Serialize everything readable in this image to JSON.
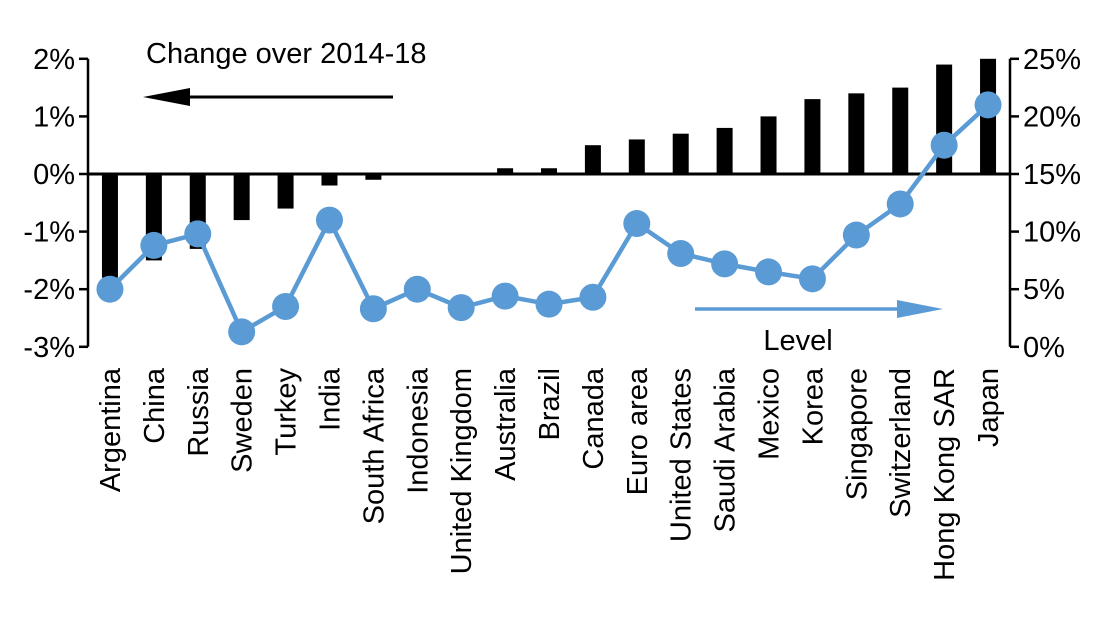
{
  "chart_data": {
    "type": "bar",
    "subtype": "combo-bar-line-dual-axis",
    "categories": [
      "Argentina",
      "China",
      "Russia",
      "Sweden",
      "Turkey",
      "India",
      "South Africa",
      "Indonesia",
      "United Kingdom",
      "Australia",
      "Brazil",
      "Canada",
      "Euro area",
      "United States",
      "Saudi Arabia",
      "Mexico",
      "Korea",
      "Singapore",
      "Switzerland",
      "Hong Kong SAR",
      "Japan"
    ],
    "series": [
      {
        "name": "Change over 2014-18",
        "type": "bar",
        "axis": "left",
        "color": "#000000",
        "values": [
          -1.8,
          -1.5,
          -1.3,
          -0.8,
          -0.6,
          -0.2,
          -0.1,
          0.0,
          0.0,
          0.1,
          0.1,
          0.5,
          0.6,
          0.7,
          0.8,
          1.0,
          1.3,
          1.4,
          1.5,
          1.9,
          2.0
        ]
      },
      {
        "name": "Level",
        "type": "line",
        "axis": "right",
        "color": "#5B9BD5",
        "values": [
          5.0,
          8.8,
          9.8,
          1.3,
          3.5,
          11.0,
          3.3,
          5.0,
          3.4,
          4.4,
          3.7,
          4.3,
          10.7,
          8.1,
          7.2,
          6.5,
          5.9,
          9.7,
          12.4,
          17.5,
          21.0
        ]
      }
    ],
    "left_axis": {
      "tick_labels": [
        "2%",
        "1%",
        "0%",
        "-1%",
        "-2%",
        "-3%"
      ],
      "tick_values": [
        2,
        1,
        0,
        -1,
        -2,
        -3
      ],
      "range": [
        -3,
        2
      ]
    },
    "right_axis": {
      "tick_labels": [
        "25%",
        "20%",
        "15%",
        "10%",
        "5%",
        "0%"
      ],
      "tick_values": [
        25,
        20,
        15,
        10,
        5,
        0
      ],
      "range": [
        0,
        25
      ]
    },
    "grid": false,
    "legend_position": "none",
    "annotations": {
      "change_label": "Change over 2014-18",
      "change_arrow_direction": "left",
      "change_arrow_color": "#000000",
      "level_label": "Level",
      "level_arrow_direction": "right",
      "level_arrow_color": "#5B9BD5"
    },
    "colors": {
      "bar": "#000000",
      "line": "#5B9BD5",
      "axis": "#000000",
      "background": "#ffffff"
    }
  }
}
